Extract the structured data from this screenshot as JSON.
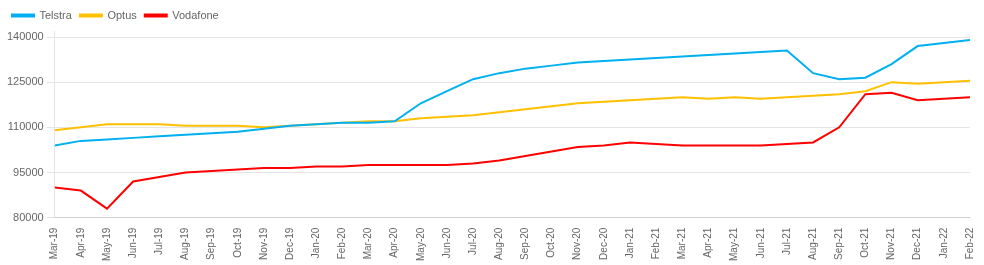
{
  "chart_data": {
    "type": "line",
    "categories": [
      "Mar-19",
      "Apr-19",
      "May-19",
      "Jun-19",
      "Jul-19",
      "Aug-19",
      "Sep-19",
      "Oct-19",
      "Nov-19",
      "Dec-19",
      "Jan-20",
      "Feb-20",
      "Mar-20",
      "Apr-20",
      "May-20",
      "Jun-20",
      "Jul-20",
      "Aug-20",
      "Sep-20",
      "Oct-20",
      "Nov-20",
      "Dec-20",
      "Jan-21",
      "Feb-21",
      "Mar-21",
      "Apr-21",
      "May-21",
      "Jun-21",
      "Jul-21",
      "Aug-21",
      "Sep-21",
      "Oct-21",
      "Nov-21",
      "Dec-21",
      "Jan-22",
      "Feb-22"
    ],
    "series": [
      {
        "name": "Telstra",
        "color": "#00B0F0",
        "values": [
          104000,
          105500,
          106000,
          106500,
          107000,
          107500,
          108000,
          108500,
          109500,
          110500,
          111000,
          111500,
          111500,
          112000,
          118000,
          122000,
          126000,
          128000,
          129500,
          130500,
          131500,
          132000,
          132500,
          133000,
          133500,
          134000,
          134500,
          135000,
          135500,
          128000,
          126000,
          126500,
          131000,
          137000,
          138000,
          139000
        ]
      },
      {
        "name": "Optus",
        "color": "#FFC000",
        "values": [
          109000,
          110000,
          111000,
          111000,
          111000,
          110500,
          110500,
          110500,
          110000,
          110500,
          111000,
          111500,
          112000,
          112000,
          113000,
          113500,
          114000,
          115000,
          116000,
          117000,
          118000,
          118500,
          119000,
          119500,
          120000,
          119500,
          120000,
          119500,
          120000,
          120500,
          121000,
          122000,
          125000,
          124500,
          125000,
          125500
        ]
      },
      {
        "name": "Vodafone",
        "color": "#FF0000",
        "values": [
          90000,
          89000,
          83000,
          92000,
          93500,
          95000,
          95500,
          96000,
          96500,
          96500,
          97000,
          97000,
          97500,
          97500,
          97500,
          97500,
          98000,
          99000,
          100500,
          102000,
          103500,
          104000,
          105000,
          104500,
          104000,
          104000,
          104000,
          104000,
          104500,
          105000,
          110000,
          121000,
          121500,
          119000,
          119500,
          120000
        ]
      }
    ],
    "ylim": [
      80000,
      142000
    ],
    "yticks": [
      80000,
      95000,
      110000,
      125000,
      140000
    ],
    "grid": true,
    "legend": "upper left"
  }
}
